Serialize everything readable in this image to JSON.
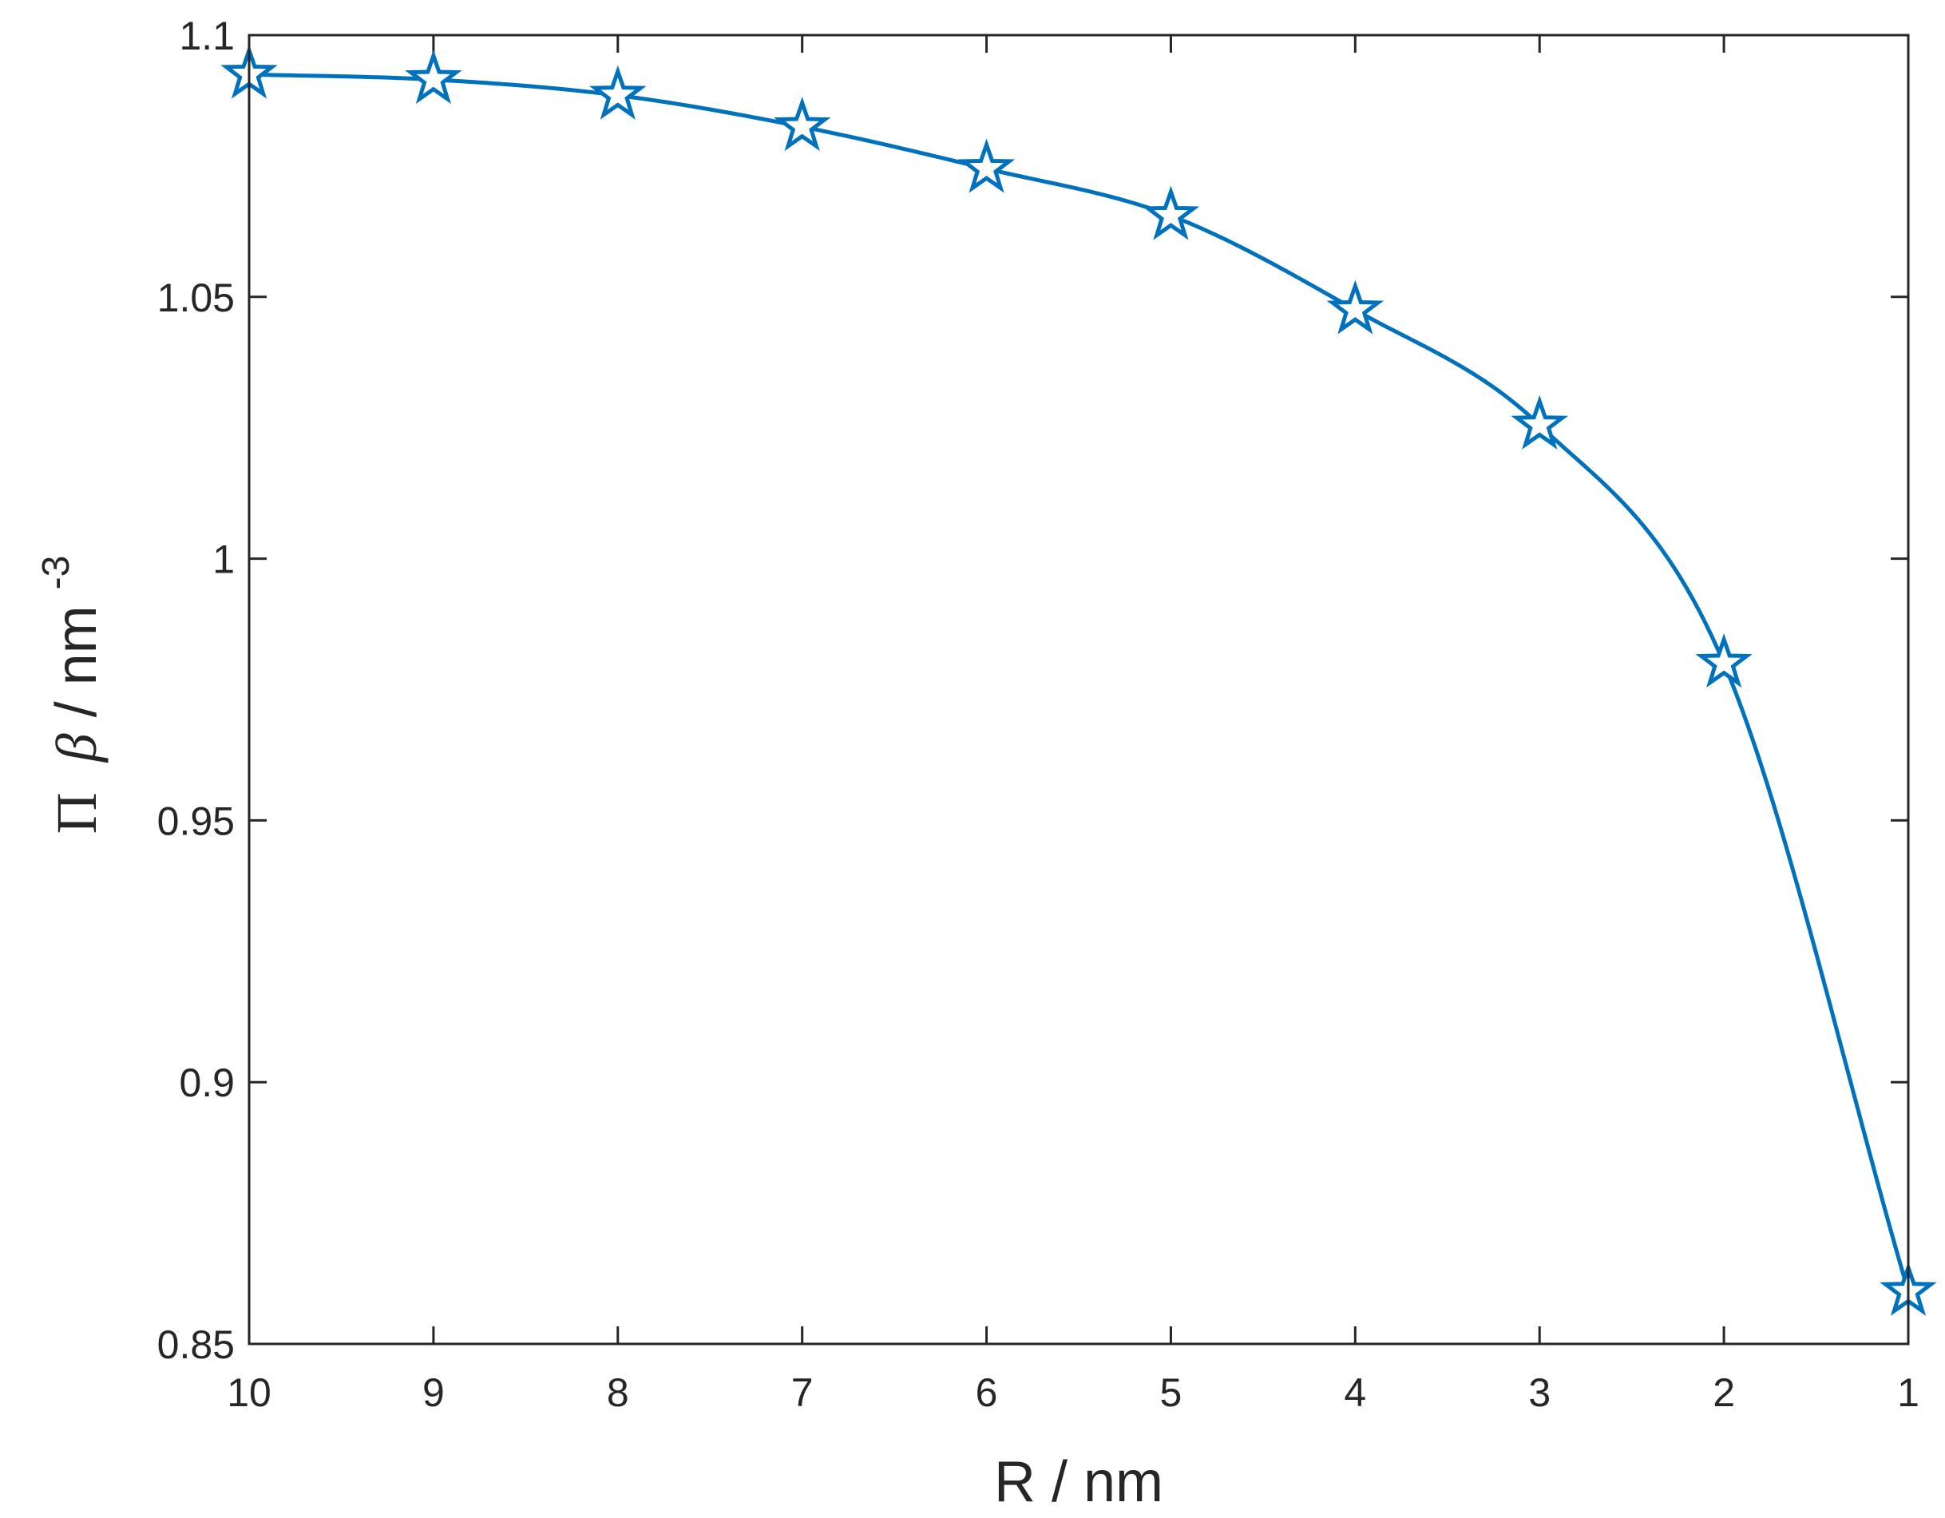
{
  "chart_data": {
    "type": "line",
    "title": "",
    "xlabel": "R / nm",
    "ylabel": {
      "symbol": "Π",
      "variable": "β",
      "unit": " / nm",
      "exponent": "-3"
    },
    "x": [
      10,
      9,
      8,
      7,
      6,
      5,
      4,
      3,
      2,
      1
    ],
    "series": [
      {
        "values": [
          1.0925,
          1.0915,
          1.0885,
          1.0825,
          1.0745,
          1.0655,
          1.0475,
          1.0255,
          0.98,
          0.86
        ],
        "marker": "pentagram",
        "line": "smooth"
      }
    ],
    "xlim": [
      10,
      1
    ],
    "x_reversed": true,
    "ylim": [
      0.85,
      1.1
    ],
    "xticks": [
      10,
      9,
      8,
      7,
      6,
      5,
      4,
      3,
      2,
      1
    ],
    "xtick_labels": [
      "10",
      "9",
      "8",
      "7",
      "6",
      "5",
      "4",
      "3",
      "2",
      "1"
    ],
    "yticks": [
      0.85,
      0.9,
      0.95,
      1.0,
      1.05,
      1.1
    ],
    "ytick_labels": [
      "0.85",
      "0.9",
      "0.95",
      "1",
      "1.05",
      "1.1"
    ],
    "grid": false,
    "legend": "none",
    "colors": {
      "series": "#0072BD",
      "axes": "#262626",
      "background": "#ffffff"
    }
  }
}
